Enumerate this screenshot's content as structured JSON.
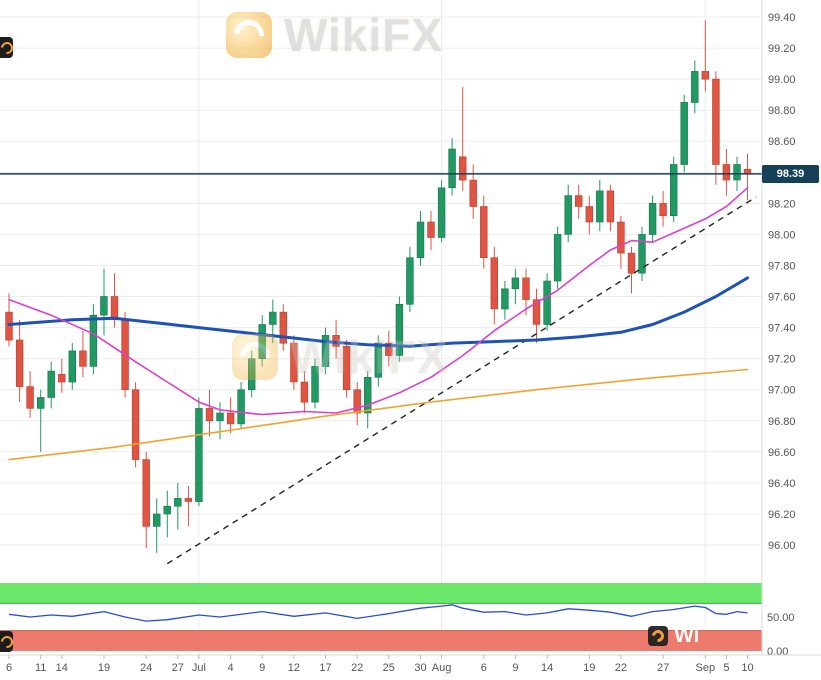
{
  "watermark": {
    "brand": "WikiFX",
    "partial": "Wi"
  },
  "last_price": {
    "label": "98.39",
    "value": 98.39,
    "line_color": "#14405a",
    "badge_bg": "#14405a"
  },
  "colors": {
    "candle_up": "#209963",
    "candle_up_border": "#17744b",
    "candle_down": "#df5442",
    "candle_down_border": "#b4402f",
    "grid": "#ececec",
    "axis_text": "#555555",
    "frame": "#d8d8d8"
  },
  "chart_data": {
    "type": "candlestick",
    "title": "",
    "y_axis_range": [
      95.9,
      99.51
    ],
    "y_ticks": [
      99.4,
      99.2,
      99.0,
      98.8,
      98.6,
      98.4,
      98.2,
      98.0,
      97.8,
      97.6,
      97.4,
      97.2,
      97.0,
      96.8,
      96.6,
      96.4,
      96.2,
      96.0
    ],
    "x_ticks": [
      {
        "i": 0,
        "label": "6"
      },
      {
        "i": 3,
        "label": "11"
      },
      {
        "i": 5,
        "label": "14"
      },
      {
        "i": 9,
        "label": "19"
      },
      {
        "i": 13,
        "label": "24"
      },
      {
        "i": 16,
        "label": "27"
      },
      {
        "i": 18,
        "label": "Jul",
        "major": true
      },
      {
        "i": 21,
        "label": "4"
      },
      {
        "i": 24,
        "label": "9"
      },
      {
        "i": 27,
        "label": "12"
      },
      {
        "i": 30,
        "label": "17"
      },
      {
        "i": 33,
        "label": "22"
      },
      {
        "i": 36,
        "label": "25"
      },
      {
        "i": 39,
        "label": "30"
      },
      {
        "i": 41,
        "label": "Aug",
        "major": true
      },
      {
        "i": 45,
        "label": "6"
      },
      {
        "i": 48,
        "label": "9"
      },
      {
        "i": 51,
        "label": "14"
      },
      {
        "i": 55,
        "label": "19"
      },
      {
        "i": 58,
        "label": "22"
      },
      {
        "i": 62,
        "label": "27"
      },
      {
        "i": 66,
        "label": "Sep",
        "major": true
      },
      {
        "i": 68,
        "label": "5"
      },
      {
        "i": 70,
        "label": "10"
      }
    ],
    "candles": [
      [
        97.5,
        97.62,
        97.28,
        97.32
      ],
      [
        97.32,
        97.45,
        96.92,
        97.02
      ],
      [
        97.02,
        97.12,
        96.82,
        96.88
      ],
      [
        96.88,
        97.0,
        96.6,
        96.95
      ],
      [
        96.95,
        97.18,
        96.88,
        97.12
      ],
      [
        97.1,
        97.2,
        96.98,
        97.05
      ],
      [
        97.05,
        97.3,
        97.0,
        97.25
      ],
      [
        97.25,
        97.38,
        97.08,
        97.15
      ],
      [
        97.15,
        97.55,
        97.1,
        97.48
      ],
      [
        97.48,
        97.78,
        97.35,
        97.6
      ],
      [
        97.6,
        97.75,
        97.4,
        97.45
      ],
      [
        97.45,
        97.5,
        96.95,
        97.0
      ],
      [
        97.0,
        97.05,
        96.5,
        96.55
      ],
      [
        96.55,
        96.6,
        95.98,
        96.12
      ],
      [
        96.12,
        96.3,
        95.95,
        96.2
      ],
      [
        96.2,
        96.35,
        96.05,
        96.25
      ],
      [
        96.25,
        96.4,
        96.1,
        96.3
      ],
      [
        96.3,
        96.38,
        96.12,
        96.28
      ],
      [
        96.28,
        96.95,
        96.25,
        96.88
      ],
      [
        96.88,
        97.0,
        96.7,
        96.8
      ],
      [
        96.8,
        96.92,
        96.68,
        96.85
      ],
      [
        96.85,
        96.95,
        96.72,
        96.78
      ],
      [
        96.78,
        97.05,
        96.75,
        97.0
      ],
      [
        97.0,
        97.25,
        96.95,
        97.2
      ],
      [
        97.2,
        97.48,
        97.15,
        97.42
      ],
      [
        97.42,
        97.58,
        97.3,
        97.5
      ],
      [
        97.5,
        97.55,
        97.25,
        97.3
      ],
      [
        97.3,
        97.35,
        97.0,
        97.05
      ],
      [
        97.05,
        97.12,
        96.85,
        96.92
      ],
      [
        96.92,
        97.2,
        96.88,
        97.15
      ],
      [
        97.15,
        97.4,
        97.1,
        97.35
      ],
      [
        97.35,
        97.45,
        97.2,
        97.28
      ],
      [
        97.28,
        97.32,
        96.95,
        97.0
      ],
      [
        97.0,
        97.05,
        96.77,
        96.85
      ],
      [
        96.85,
        97.12,
        96.75,
        97.08
      ],
      [
        97.08,
        97.35,
        97.02,
        97.3
      ],
      [
        97.3,
        97.38,
        97.15,
        97.22
      ],
      [
        97.22,
        97.6,
        97.18,
        97.55
      ],
      [
        97.55,
        97.92,
        97.5,
        97.85
      ],
      [
        97.85,
        98.15,
        97.8,
        98.08
      ],
      [
        98.08,
        98.15,
        97.9,
        97.98
      ],
      [
        97.98,
        98.35,
        97.95,
        98.3
      ],
      [
        98.3,
        98.62,
        98.25,
        98.55
      ],
      [
        98.5,
        98.95,
        98.28,
        98.35
      ],
      [
        98.35,
        98.45,
        98.1,
        98.18
      ],
      [
        98.18,
        98.25,
        97.78,
        97.85
      ],
      [
        97.85,
        97.92,
        97.42,
        97.52
      ],
      [
        97.52,
        97.7,
        97.45,
        97.65
      ],
      [
        97.65,
        97.78,
        97.55,
        97.72
      ],
      [
        97.72,
        97.78,
        97.48,
        97.58
      ],
      [
        97.58,
        97.65,
        97.3,
        97.42
      ],
      [
        97.42,
        97.75,
        97.38,
        97.7
      ],
      [
        97.7,
        98.05,
        97.65,
        98.0
      ],
      [
        98.0,
        98.32,
        97.95,
        98.25
      ],
      [
        98.25,
        98.32,
        98.1,
        98.18
      ],
      [
        98.18,
        98.25,
        98.0,
        98.08
      ],
      [
        98.08,
        98.35,
        98.02,
        98.28
      ],
      [
        98.28,
        98.32,
        98.02,
        98.08
      ],
      [
        98.08,
        98.12,
        97.78,
        97.88
      ],
      [
        97.88,
        97.92,
        97.62,
        97.75
      ],
      [
        97.75,
        98.05,
        97.7,
        98.0
      ],
      [
        98.0,
        98.25,
        97.95,
        98.2
      ],
      [
        98.2,
        98.28,
        98.05,
        98.12
      ],
      [
        98.12,
        98.5,
        98.08,
        98.45
      ],
      [
        98.45,
        98.9,
        98.4,
        98.85
      ],
      [
        98.85,
        99.12,
        98.78,
        99.05
      ],
      [
        99.05,
        99.38,
        98.92,
        99.0
      ],
      [
        99.0,
        99.05,
        98.32,
        98.45
      ],
      [
        98.45,
        98.55,
        98.25,
        98.35
      ],
      [
        98.35,
        98.5,
        98.28,
        98.45
      ],
      [
        98.42,
        98.52,
        98.22,
        98.39
      ]
    ],
    "overlays": [
      {
        "name": "ma-long-orange",
        "color": "#f2a32e",
        "width": 1.6,
        "points": [
          [
            0,
            96.55
          ],
          [
            10,
            96.63
          ],
          [
            20,
            96.73
          ],
          [
            30,
            96.83
          ],
          [
            40,
            96.92
          ],
          [
            50,
            97.0
          ],
          [
            60,
            97.07
          ],
          [
            70,
            97.13
          ]
        ]
      },
      {
        "name": "ma-slow-blue",
        "color": "#1d52b8",
        "width": 3,
        "points": [
          [
            0,
            97.42
          ],
          [
            6,
            97.45
          ],
          [
            10,
            97.46
          ],
          [
            14,
            97.43
          ],
          [
            18,
            97.4
          ],
          [
            22,
            97.37
          ],
          [
            26,
            97.34
          ],
          [
            30,
            97.31
          ],
          [
            34,
            97.29
          ],
          [
            38,
            97.28
          ],
          [
            42,
            97.3
          ],
          [
            46,
            97.31
          ],
          [
            50,
            97.32
          ],
          [
            54,
            97.34
          ],
          [
            58,
            97.37
          ],
          [
            61,
            97.42
          ],
          [
            64,
            97.5
          ],
          [
            67,
            97.6
          ],
          [
            70,
            97.72
          ]
        ]
      },
      {
        "name": "ma-fast-magenta",
        "color": "#dd3fc8",
        "width": 1.6,
        "points": [
          [
            0,
            97.58
          ],
          [
            4,
            97.48
          ],
          [
            8,
            97.36
          ],
          [
            12,
            97.18
          ],
          [
            15,
            97.05
          ],
          [
            18,
            96.92
          ],
          [
            20,
            96.87
          ],
          [
            24,
            96.84
          ],
          [
            28,
            96.86
          ],
          [
            31,
            96.85
          ],
          [
            34,
            96.9
          ],
          [
            37,
            96.98
          ],
          [
            40,
            97.08
          ],
          [
            43,
            97.22
          ],
          [
            46,
            97.38
          ],
          [
            49,
            97.52
          ],
          [
            52,
            97.64
          ],
          [
            55,
            97.8
          ],
          [
            57,
            97.9
          ],
          [
            59,
            97.96
          ],
          [
            61,
            97.95
          ],
          [
            63,
            98.01
          ],
          [
            66,
            98.1
          ],
          [
            68,
            98.18
          ],
          [
            70,
            98.3
          ]
        ]
      }
    ],
    "trendline": {
      "from": [
        15,
        95.88
      ],
      "to": [
        70.8,
        98.24
      ],
      "color": "#222222",
      "dash": "6,5"
    },
    "indicator": {
      "name": "rsi",
      "line_color": "#2a4bd7",
      "upper_band": [
        70,
        100
      ],
      "lower_band": [
        0,
        30
      ],
      "band_colors": {
        "upper": "#6ae76a",
        "upper_edge": "#2fae2f",
        "lower": "#ec7a6d",
        "lower_edge": "#cc5a4e"
      },
      "axis_labels": [
        "50.00",
        "0.00"
      ],
      "points": [
        [
          0,
          54
        ],
        [
          2,
          50
        ],
        [
          4,
          53
        ],
        [
          6,
          51
        ],
        [
          9,
          58
        ],
        [
          11,
          50
        ],
        [
          13,
          44
        ],
        [
          15,
          46
        ],
        [
          18,
          53
        ],
        [
          20,
          50
        ],
        [
          24,
          58
        ],
        [
          27,
          51
        ],
        [
          30,
          56
        ],
        [
          33,
          48
        ],
        [
          36,
          55
        ],
        [
          39,
          63
        ],
        [
          41,
          66
        ],
        [
          42,
          68
        ],
        [
          43,
          63
        ],
        [
          45,
          57
        ],
        [
          47,
          58
        ],
        [
          49,
          53
        ],
        [
          51,
          56
        ],
        [
          53,
          62
        ],
        [
          55,
          60
        ],
        [
          57,
          57
        ],
        [
          59,
          51
        ],
        [
          61,
          58
        ],
        [
          63,
          61
        ],
        [
          65,
          66
        ],
        [
          66,
          64
        ],
        [
          67,
          55
        ],
        [
          68,
          54
        ],
        [
          69,
          58
        ],
        [
          70,
          56
        ]
      ]
    }
  }
}
